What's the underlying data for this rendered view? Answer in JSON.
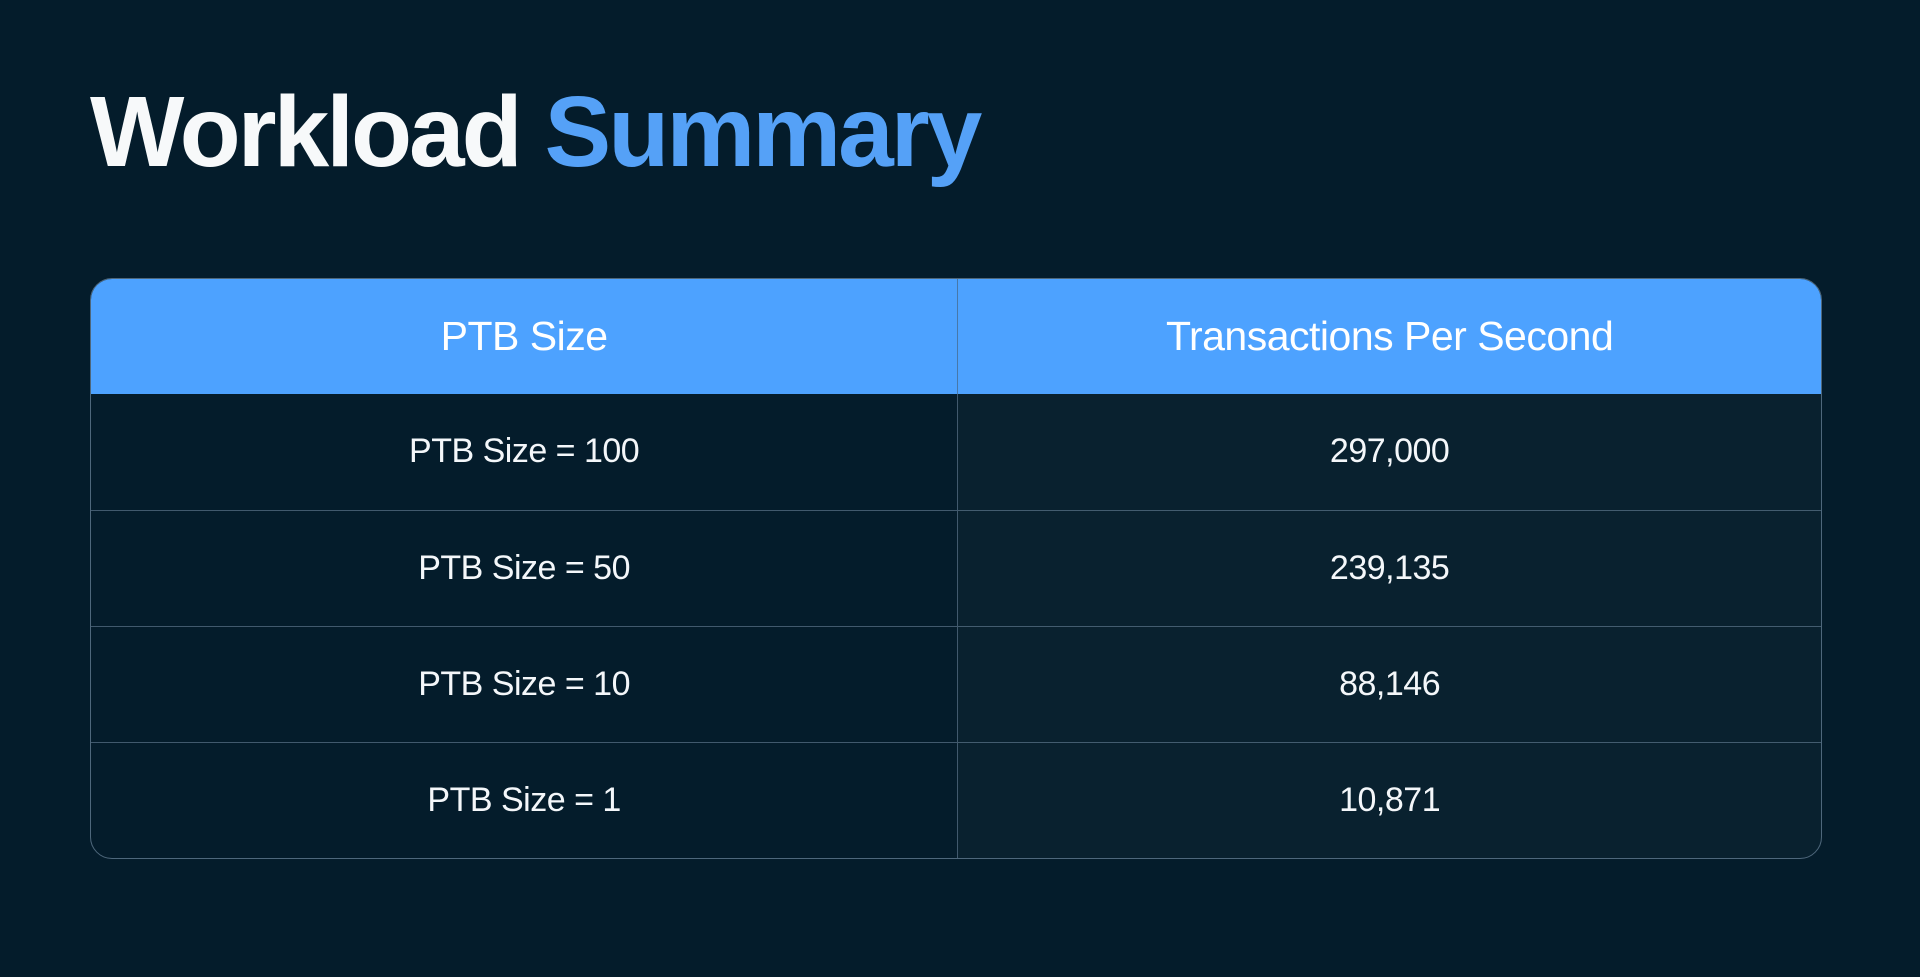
{
  "page": {
    "background": "#041C2B",
    "accent": "#4DA2FF",
    "title_accent_color": "#55A1F7"
  },
  "title": {
    "text_primary": "Workload ",
    "text_accent": "Summary"
  },
  "table": {
    "columns": [
      "PTB Size",
      "Transactions Per Second"
    ],
    "rows": [
      {
        "label": "PTB Size = 100",
        "value": "297,000"
      },
      {
        "label": "PTB Size = 50",
        "value": "239,135"
      },
      {
        "label": "PTB Size = 10",
        "value": "88,146"
      },
      {
        "label": "PTB Size = 1",
        "value": "10,871"
      }
    ]
  },
  "chart_data": {
    "type": "table",
    "title": "Workload Summary",
    "columns": [
      "PTB Size",
      "Transactions Per Second"
    ],
    "rows": [
      [
        "PTB Size = 100",
        297000
      ],
      [
        "PTB Size = 50",
        239135
      ],
      [
        "PTB Size = 10",
        88146
      ],
      [
        "PTB Size = 1",
        10871
      ]
    ]
  }
}
